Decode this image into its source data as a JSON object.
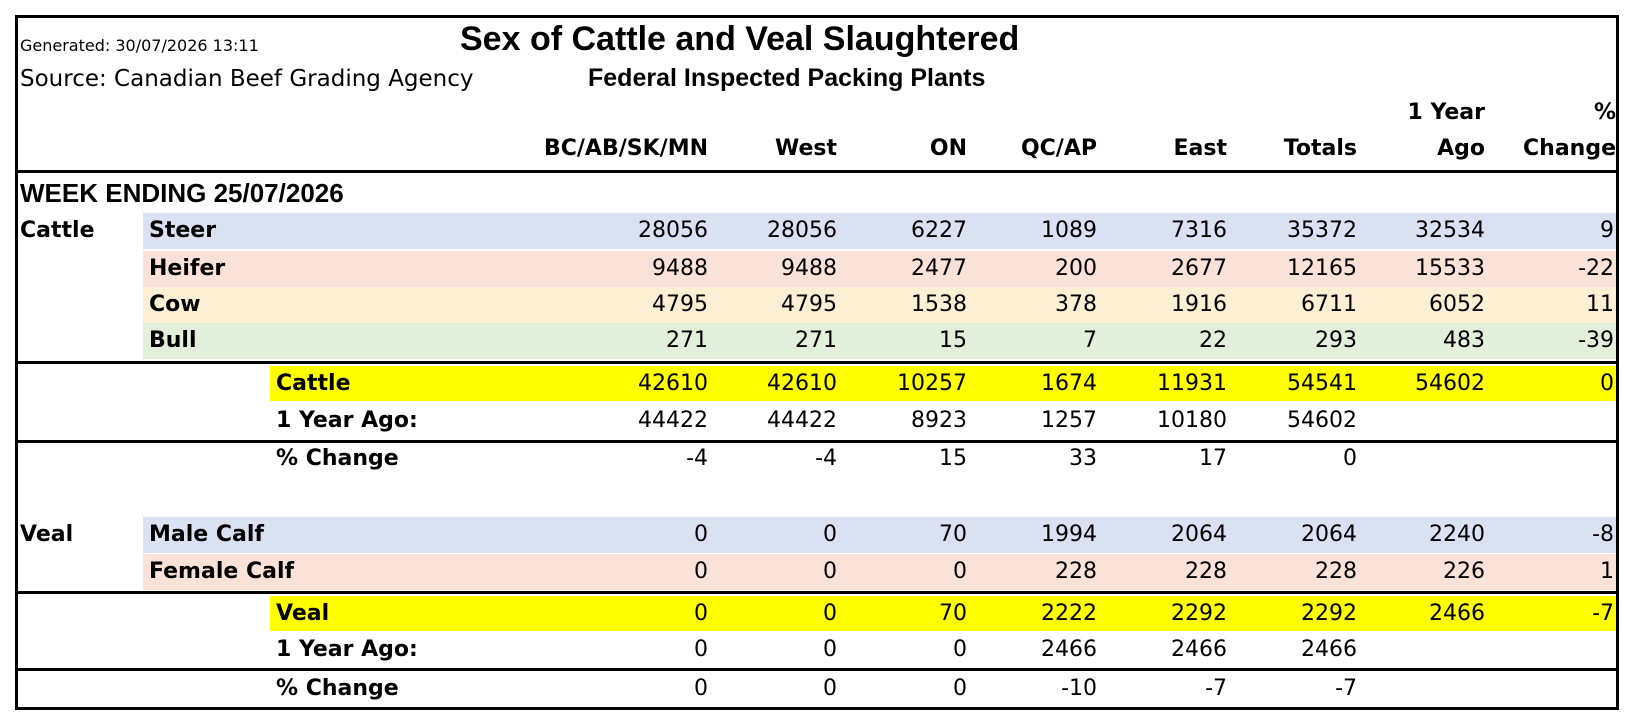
{
  "meta": {
    "generated": "Generated: 30/07/2026 13:11",
    "source": "Source: Canadian Beef Grading Agency",
    "title": "Sex of Cattle and Veal Slaughtered",
    "subtitle": "Federal Inspected Packing Plants",
    "week_ending": "WEEK ENDING 25/07/2026"
  },
  "columns": {
    "c1": "BC/AB/SK/MN",
    "c2": "West",
    "c3": "ON",
    "c4": "QC/AP",
    "c5": "East",
    "c6": "Totals",
    "c7_line1": "1 Year",
    "c7_line2": "Ago",
    "c8_line1": "%",
    "c8_line2": "Change"
  },
  "colors": {
    "blue": "#dae1f2",
    "red": "#fbe2d8",
    "orange": "#fdefd3",
    "green": "#e2efdb",
    "yellow": "#ffff00"
  },
  "rows": {
    "cattle_group": "Cattle",
    "steer": {
      "label": "Steer",
      "v": [
        "28056",
        "28056",
        "6227",
        "1089",
        "7316",
        "35372",
        "32534",
        "9"
      ]
    },
    "heifer": {
      "label": "Heifer",
      "v": [
        "9488",
        "9488",
        "2477",
        "200",
        "2677",
        "12165",
        "15533",
        "-22"
      ]
    },
    "cow": {
      "label": "Cow",
      "v": [
        "4795",
        "4795",
        "1538",
        "378",
        "1916",
        "6711",
        "6052",
        "11"
      ]
    },
    "bull": {
      "label": "Bull",
      "v": [
        "271",
        "271",
        "15",
        "7",
        "22",
        "293",
        "483",
        "-39"
      ]
    },
    "cattle_total": {
      "label": "Cattle",
      "v": [
        "42610",
        "42610",
        "10257",
        "1674",
        "11931",
        "54541",
        "54602",
        "0"
      ]
    },
    "cattle_1yr": {
      "label": "1 Year Ago:",
      "v": [
        "44422",
        "44422",
        "8923",
        "1257",
        "10180",
        "54602"
      ]
    },
    "cattle_pct": {
      "label": "% Change",
      "v": [
        "-4",
        "-4",
        "15",
        "33",
        "17",
        "0"
      ]
    },
    "veal_group": "Veal",
    "male_calf": {
      "label": "Male Calf",
      "v": [
        "0",
        "0",
        "70",
        "1994",
        "2064",
        "2064",
        "2240",
        "-8"
      ]
    },
    "female_calf": {
      "label": "Female Calf",
      "v": [
        "0",
        "0",
        "0",
        "228",
        "228",
        "228",
        "226",
        "1"
      ]
    },
    "veal_total": {
      "label": "Veal",
      "v": [
        "0",
        "0",
        "70",
        "2222",
        "2292",
        "2292",
        "2466",
        "-7"
      ]
    },
    "veal_1yr": {
      "label": "1 Year Ago:",
      "v": [
        "0",
        "0",
        "0",
        "2466",
        "2466",
        "2466"
      ]
    },
    "veal_pct": {
      "label": "% Change",
      "v": [
        "0",
        "0",
        "0",
        "-10",
        "-7",
        "-7"
      ]
    }
  }
}
